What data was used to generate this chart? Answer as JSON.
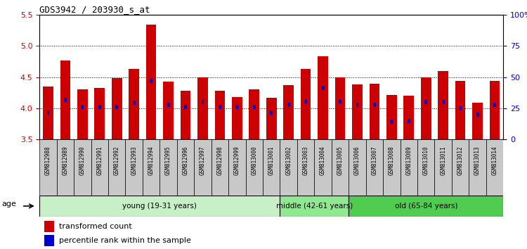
{
  "title": "GDS3942 / 203930_s_at",
  "samples": [
    "GSM812988",
    "GSM812989",
    "GSM812990",
    "GSM812991",
    "GSM812992",
    "GSM812993",
    "GSM812994",
    "GSM812995",
    "GSM812996",
    "GSM812997",
    "GSM812998",
    "GSM812999",
    "GSM813000",
    "GSM813001",
    "GSM813002",
    "GSM813003",
    "GSM813004",
    "GSM813005",
    "GSM813006",
    "GSM813007",
    "GSM813008",
    "GSM813009",
    "GSM813010",
    "GSM813011",
    "GSM813012",
    "GSM813013",
    "GSM813014"
  ],
  "bar_values": [
    4.35,
    4.77,
    4.3,
    4.33,
    4.49,
    4.63,
    5.34,
    4.43,
    4.28,
    4.5,
    4.28,
    4.18,
    4.3,
    4.17,
    4.37,
    4.63,
    4.84,
    4.5,
    4.38,
    4.39,
    4.21,
    4.2,
    4.5,
    4.6,
    4.44,
    4.09,
    4.44
  ],
  "percentile_values": [
    3.93,
    4.14,
    4.02,
    4.02,
    4.02,
    4.09,
    4.44,
    4.06,
    4.02,
    4.1,
    4.02,
    4.02,
    4.02,
    3.93,
    4.06,
    4.11,
    4.33,
    4.11,
    4.06,
    4.06,
    3.78,
    3.8,
    4.1,
    4.1,
    4.0,
    3.9,
    4.06
  ],
  "ylim": [
    3.5,
    5.5
  ],
  "yticks": [
    3.5,
    4.0,
    4.5,
    5.0,
    5.5
  ],
  "right_ytick_labels": [
    "0",
    "25",
    "50",
    "75",
    "100%"
  ],
  "bar_color": "#cc0000",
  "dot_color": "#0000cc",
  "bar_width": 0.6,
  "groups": [
    {
      "label": "young (19-31 years)",
      "start": 0,
      "end": 14,
      "color": "#c8f0c8"
    },
    {
      "label": "middle (42-61 years)",
      "start": 14,
      "end": 18,
      "color": "#90e890"
    },
    {
      "label": "old (65-84 years)",
      "start": 18,
      "end": 27,
      "color": "#50cc50"
    }
  ],
  "legend_items": [
    {
      "label": "transformed count",
      "color": "#cc0000"
    },
    {
      "label": "percentile rank within the sample",
      "color": "#0000cc"
    }
  ],
  "age_label": "age",
  "axis_label_color_left": "#cc0000",
  "axis_label_color_right": "#0000cc",
  "tick_bg_color": "#c8c8c8"
}
